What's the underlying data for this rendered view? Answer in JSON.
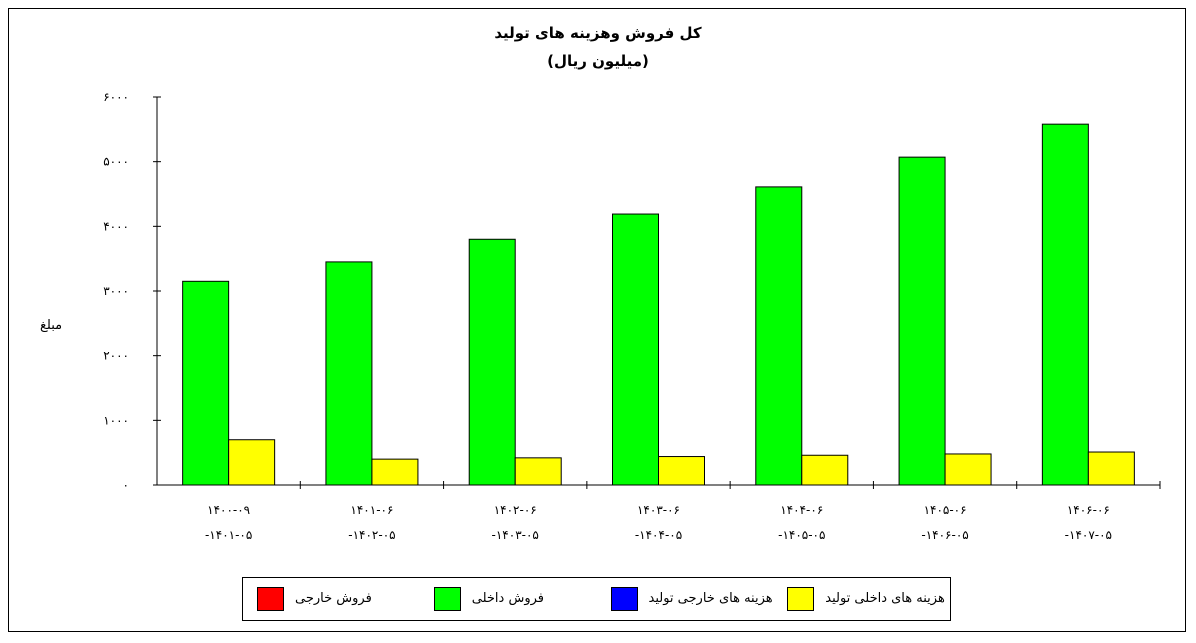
{
  "chart_data": {
    "type": "bar",
    "title": "کل فروش وهزینه های تولید",
    "subtitle": "(میلیون ریال)",
    "ylabel": "مبلغ",
    "ylim": [
      0,
      6000
    ],
    "yticks": [
      0,
      1000,
      2000,
      3000,
      4000,
      5000,
      6000
    ],
    "ytick_labels": [
      "۰",
      "۱۰۰۰",
      "۲۰۰۰",
      "۳۰۰۰",
      "۴۰۰۰",
      "۵۰۰۰",
      "۶۰۰۰"
    ],
    "categories": [
      {
        "line1": "۱۴۰۰-۰۹",
        "line2": "-۱۴۰۱-۰۵"
      },
      {
        "line1": "۱۴۰۱-۰۶",
        "line2": "-۱۴۰۲-۰۵"
      },
      {
        "line1": "۱۴۰۲-۰۶",
        "line2": "-۱۴۰۳-۰۵"
      },
      {
        "line1": "۱۴۰۳-۰۶",
        "line2": "-۱۴۰۴-۰۵"
      },
      {
        "line1": "۱۴۰۴-۰۶",
        "line2": "-۱۴۰۵-۰۵"
      },
      {
        "line1": "۱۴۰۵-۰۶",
        "line2": "-۱۴۰۶-۰۵"
      },
      {
        "line1": "۱۴۰۶-۰۶",
        "line2": "-۱۴۰۷-۰۵"
      }
    ],
    "series": [
      {
        "name": "فروش خارجی",
        "color": "#ff0000",
        "values": [
          0,
          0,
          0,
          0,
          0,
          0,
          0
        ]
      },
      {
        "name": "فروش داخلی",
        "color": "#00ff00",
        "values": [
          3150,
          3450,
          3800,
          4190,
          4610,
          5070,
          5580
        ]
      },
      {
        "name": "هزینه های خارجی تولید",
        "color": "#0000ff",
        "values": [
          0,
          0,
          0,
          0,
          0,
          0,
          0
        ]
      },
      {
        "name": "هزینه های داخلی تولید",
        "color": "#ffff00",
        "values": [
          700,
          400,
          420,
          440,
          460,
          480,
          510
        ]
      }
    ],
    "legend_position": "bottom",
    "grid": false
  }
}
